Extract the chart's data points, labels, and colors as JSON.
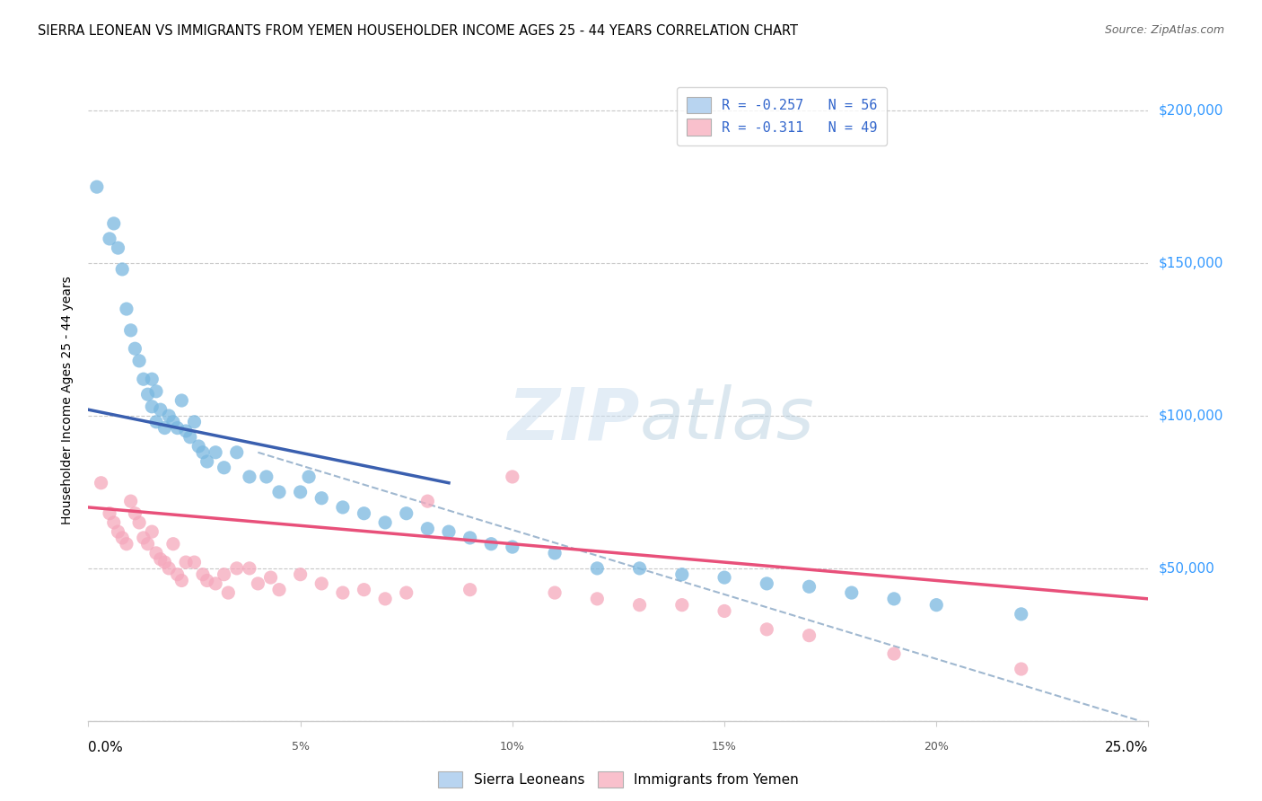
{
  "title": "SIERRA LEONEAN VS IMMIGRANTS FROM YEMEN HOUSEHOLDER INCOME AGES 25 - 44 YEARS CORRELATION CHART",
  "source": "Source: ZipAtlas.com",
  "ylabel": "Householder Income Ages 25 - 44 years",
  "legend_r1": "R = -0.257   N = 56",
  "legend_r2": "R = -0.311   N = 49",
  "legend_blue_color": "#b8d4f0",
  "legend_pink_color": "#f9c0cc",
  "scatter_blue_color": "#7ab8e0",
  "scatter_pink_color": "#f5a8bc",
  "line_blue_color": "#3a5faf",
  "line_pink_color": "#e8507a",
  "line_dashed_color": "#a0b8d0",
  "text_blue_color": "#3366cc",
  "ytick_color": "#3399ff",
  "xlim": [
    0.0,
    0.25
  ],
  "ylim": [
    0,
    210000
  ],
  "blue_x": [
    0.002,
    0.005,
    0.006,
    0.007,
    0.008,
    0.009,
    0.01,
    0.011,
    0.012,
    0.013,
    0.014,
    0.015,
    0.015,
    0.016,
    0.016,
    0.017,
    0.018,
    0.019,
    0.02,
    0.021,
    0.022,
    0.023,
    0.024,
    0.025,
    0.026,
    0.027,
    0.028,
    0.03,
    0.032,
    0.035,
    0.038,
    0.042,
    0.045,
    0.05,
    0.052,
    0.055,
    0.06,
    0.065,
    0.07,
    0.075,
    0.08,
    0.085,
    0.09,
    0.095,
    0.1,
    0.11,
    0.12,
    0.13,
    0.14,
    0.15,
    0.16,
    0.17,
    0.18,
    0.19,
    0.2,
    0.22
  ],
  "blue_y": [
    175000,
    158000,
    163000,
    155000,
    148000,
    135000,
    128000,
    122000,
    118000,
    112000,
    107000,
    112000,
    103000,
    108000,
    98000,
    102000,
    96000,
    100000,
    98000,
    96000,
    105000,
    95000,
    93000,
    98000,
    90000,
    88000,
    85000,
    88000,
    83000,
    88000,
    80000,
    80000,
    75000,
    75000,
    80000,
    73000,
    70000,
    68000,
    65000,
    68000,
    63000,
    62000,
    60000,
    58000,
    57000,
    55000,
    50000,
    50000,
    48000,
    47000,
    45000,
    44000,
    42000,
    40000,
    38000,
    35000
  ],
  "pink_x": [
    0.003,
    0.005,
    0.006,
    0.007,
    0.008,
    0.009,
    0.01,
    0.011,
    0.012,
    0.013,
    0.014,
    0.015,
    0.016,
    0.017,
    0.018,
    0.019,
    0.02,
    0.021,
    0.022,
    0.023,
    0.025,
    0.027,
    0.028,
    0.03,
    0.032,
    0.033,
    0.035,
    0.038,
    0.04,
    0.043,
    0.045,
    0.05,
    0.055,
    0.06,
    0.065,
    0.07,
    0.075,
    0.08,
    0.09,
    0.1,
    0.11,
    0.12,
    0.13,
    0.14,
    0.15,
    0.16,
    0.17,
    0.19,
    0.22
  ],
  "pink_y": [
    78000,
    68000,
    65000,
    62000,
    60000,
    58000,
    72000,
    68000,
    65000,
    60000,
    58000,
    62000,
    55000,
    53000,
    52000,
    50000,
    58000,
    48000,
    46000,
    52000,
    52000,
    48000,
    46000,
    45000,
    48000,
    42000,
    50000,
    50000,
    45000,
    47000,
    43000,
    48000,
    45000,
    42000,
    43000,
    40000,
    42000,
    72000,
    43000,
    80000,
    42000,
    40000,
    38000,
    38000,
    36000,
    30000,
    28000,
    22000,
    17000
  ],
  "blue_line_x0": 0.0,
  "blue_line_x1": 0.085,
  "blue_line_y0": 102000,
  "blue_line_y1": 78000,
  "pink_line_x0": 0.0,
  "pink_line_x1": 0.25,
  "pink_line_y0": 70000,
  "pink_line_y1": 40000,
  "dashed_line_x0": 0.04,
  "dashed_line_x1": 0.248,
  "dashed_line_y0": 88000,
  "dashed_line_y1": 0
}
